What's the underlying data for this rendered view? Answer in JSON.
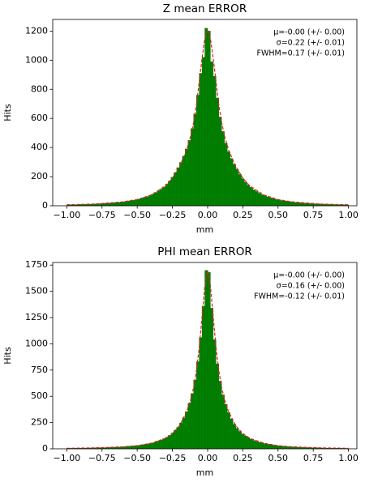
{
  "chart_data": [
    {
      "type": "histogram",
      "title": "Z mean ERROR",
      "xlabel": "mm",
      "ylabel": "Hits",
      "color": "#008000",
      "bins": [
        -1,
        -0.98,
        -0.96,
        -0.94,
        -0.92,
        -0.9,
        -0.88,
        -0.86,
        -0.84,
        -0.82,
        -0.8,
        -0.78,
        -0.76,
        -0.74,
        -0.72,
        -0.7,
        -0.68,
        -0.66,
        -0.64,
        -0.62,
        -0.6,
        -0.58,
        -0.56,
        -0.54,
        -0.52,
        -0.5,
        -0.48,
        -0.46,
        -0.44,
        -0.42,
        -0.4,
        -0.38,
        -0.36,
        -0.34,
        -0.32,
        -0.3,
        -0.28,
        -0.26,
        -0.24,
        -0.22,
        -0.2,
        -0.18,
        -0.16,
        -0.14,
        -0.12,
        -0.1,
        -0.08,
        -0.06,
        -0.04,
        -0.02,
        0,
        0.02,
        0.04,
        0.06,
        0.08,
        0.1,
        0.12,
        0.14,
        0.16,
        0.18,
        0.2,
        0.22,
        0.24,
        0.26,
        0.28,
        0.3,
        0.32,
        0.34,
        0.36,
        0.38,
        0.4,
        0.42,
        0.44,
        0.46,
        0.48,
        0.5,
        0.52,
        0.54,
        0.56,
        0.58,
        0.6,
        0.62,
        0.64,
        0.66,
        0.68,
        0.7,
        0.72,
        0.74,
        0.76,
        0.78,
        0.8,
        0.82,
        0.84,
        0.86,
        0.88,
        0.9,
        0.92,
        0.94,
        0.96,
        0.98,
        1
      ],
      "values": [
        6,
        7,
        8,
        7,
        9,
        9,
        10,
        10,
        11,
        12,
        13,
        14,
        15,
        17,
        17,
        19,
        21,
        22,
        24,
        27,
        28,
        32,
        34,
        38,
        41,
        46,
        51,
        57,
        63,
        71,
        79,
        90,
        102,
        114,
        130,
        148,
        170,
        196,
        228,
        262,
        298,
        340,
        390,
        450,
        530,
        630,
        760,
        910,
        1020,
        1220,
        1200,
        990,
        890,
        740,
        610,
        510,
        430,
        372,
        325,
        285,
        250,
        215,
        186,
        162,
        142,
        126,
        110,
        98,
        86,
        77,
        69,
        61,
        55,
        49,
        44,
        40,
        36,
        33,
        30,
        28,
        25,
        23,
        22,
        20,
        18,
        17,
        16,
        15,
        13,
        13,
        12,
        11,
        10,
        10,
        9,
        8,
        8,
        7,
        7,
        6
      ],
      "fit": {
        "color": "#d62728",
        "x": [
          -1,
          -0.8,
          -0.6,
          -0.5,
          -0.4,
          -0.3,
          -0.25,
          -0.2,
          -0.15,
          -0.12,
          -0.1,
          -0.08,
          -0.06,
          -0.04,
          -0.02,
          0,
          0.02,
          0.04,
          0.06,
          0.08,
          0.1,
          0.12,
          0.15,
          0.2,
          0.25,
          0.3,
          0.4,
          0.5,
          0.6,
          0.8,
          1
        ],
        "values": [
          7,
          12,
          27,
          43,
          74,
          136,
          190,
          270,
          380,
          480,
          570,
          690,
          850,
          1010,
          1150,
          1210,
          1150,
          1010,
          850,
          690,
          570,
          480,
          380,
          270,
          190,
          136,
          74,
          43,
          27,
          12,
          7
        ]
      },
      "annotations": [
        "μ=-0.00 (+/- 0.00)",
        "σ=0.22 (+/- 0.01)",
        "FWHM=0.17 (+/- 0.01)"
      ],
      "xlim": [
        -1.1,
        1.06
      ],
      "ylim": [
        0,
        1280
      ],
      "xticks": [
        {
          "value": -1,
          "label": "−1.00"
        },
        {
          "value": -0.75,
          "label": "−0.75"
        },
        {
          "value": -0.5,
          "label": "−0.50"
        },
        {
          "value": -0.25,
          "label": "−0.25"
        },
        {
          "value": 0,
          "label": "0.00"
        },
        {
          "value": 0.25,
          "label": "0.25"
        },
        {
          "value": 0.5,
          "label": "0.50"
        },
        {
          "value": 0.75,
          "label": "0.75"
        },
        {
          "value": 1,
          "label": "1.00"
        }
      ],
      "yticks": [
        0,
        200,
        400,
        600,
        800,
        1000,
        1200
      ]
    },
    {
      "type": "histogram",
      "title": "PHI mean ERROR",
      "xlabel": "mm",
      "ylabel": "Hits",
      "color": "#008000",
      "bins": [
        -1,
        -0.98,
        -0.96,
        -0.94,
        -0.92,
        -0.9,
        -0.88,
        -0.86,
        -0.84,
        -0.82,
        -0.8,
        -0.78,
        -0.76,
        -0.74,
        -0.72,
        -0.7,
        -0.68,
        -0.66,
        -0.64,
        -0.62,
        -0.6,
        -0.58,
        -0.56,
        -0.54,
        -0.52,
        -0.5,
        -0.48,
        -0.46,
        -0.44,
        -0.42,
        -0.4,
        -0.38,
        -0.36,
        -0.34,
        -0.32,
        -0.3,
        -0.28,
        -0.26,
        -0.24,
        -0.22,
        -0.2,
        -0.18,
        -0.16,
        -0.14,
        -0.12,
        -0.1,
        -0.08,
        -0.06,
        -0.04,
        -0.02,
        0,
        0.02,
        0.04,
        0.06,
        0.08,
        0.1,
        0.12,
        0.14,
        0.16,
        0.18,
        0.2,
        0.22,
        0.24,
        0.26,
        0.28,
        0.3,
        0.32,
        0.34,
        0.36,
        0.38,
        0.4,
        0.42,
        0.44,
        0.46,
        0.48,
        0.5,
        0.52,
        0.54,
        0.56,
        0.58,
        0.6,
        0.62,
        0.64,
        0.66,
        0.68,
        0.7,
        0.72,
        0.74,
        0.76,
        0.78,
        0.8,
        0.82,
        0.84,
        0.86,
        0.88,
        0.9,
        0.92,
        0.94,
        0.96,
        0.98,
        1
      ],
      "values": [
        5,
        5,
        6,
        6,
        6,
        7,
        7,
        8,
        8,
        9,
        9,
        10,
        11,
        11,
        12,
        13,
        14,
        16,
        17,
        19,
        20,
        22,
        25,
        27,
        30,
        33,
        37,
        41,
        45,
        51,
        57,
        64,
        74,
        84,
        96,
        110,
        128,
        150,
        175,
        205,
        245,
        295,
        355,
        435,
        525,
        655,
        830,
        1060,
        1360,
        1700,
        1680,
        1340,
        1040,
        810,
        645,
        515,
        425,
        345,
        285,
        235,
        195,
        166,
        142,
        123,
        106,
        92,
        80,
        70,
        62,
        55,
        49,
        43,
        39,
        35,
        31,
        28,
        25,
        23,
        21,
        19,
        18,
        16,
        15,
        14,
        13,
        12,
        11,
        10,
        10,
        9,
        8,
        8,
        7,
        7,
        6,
        6,
        5,
        5,
        5,
        4
      ],
      "fit": {
        "color": "#d62728",
        "x": [
          -1,
          -0.8,
          -0.6,
          -0.5,
          -0.4,
          -0.3,
          -0.25,
          -0.2,
          -0.15,
          -0.12,
          -0.1,
          -0.08,
          -0.06,
          -0.04,
          -0.02,
          0,
          0.02,
          0.04,
          0.06,
          0.08,
          0.1,
          0.12,
          0.15,
          0.2,
          0.25,
          0.3,
          0.4,
          0.5,
          0.6,
          0.8,
          1
        ],
        "values": [
          5,
          9,
          19,
          30,
          53,
          100,
          145,
          220,
          350,
          470,
          580,
          740,
          960,
          1250,
          1550,
          1700,
          1550,
          1250,
          960,
          740,
          580,
          470,
          350,
          220,
          145,
          100,
          53,
          30,
          19,
          9,
          5
        ]
      },
      "annotations": [
        "μ=-0.00 (+/- 0.00)",
        "σ=0.16 (+/- 0.00)",
        "FWHM=-0.12 (+/- 0.01)"
      ],
      "xlim": [
        -1.1,
        1.06
      ],
      "ylim": [
        0,
        1775
      ],
      "xticks": [
        {
          "value": -1,
          "label": "−1.00"
        },
        {
          "value": -0.75,
          "label": "−0.75"
        },
        {
          "value": -0.5,
          "label": "−0.50"
        },
        {
          "value": -0.25,
          "label": "−0.25"
        },
        {
          "value": 0,
          "label": "0.00"
        },
        {
          "value": 0.25,
          "label": "0.25"
        },
        {
          "value": 0.5,
          "label": "0.50"
        },
        {
          "value": 0.75,
          "label": "0.75"
        },
        {
          "value": 1,
          "label": "1.00"
        }
      ],
      "yticks": [
        0,
        250,
        500,
        750,
        1000,
        1250,
        1500,
        1750
      ]
    }
  ]
}
